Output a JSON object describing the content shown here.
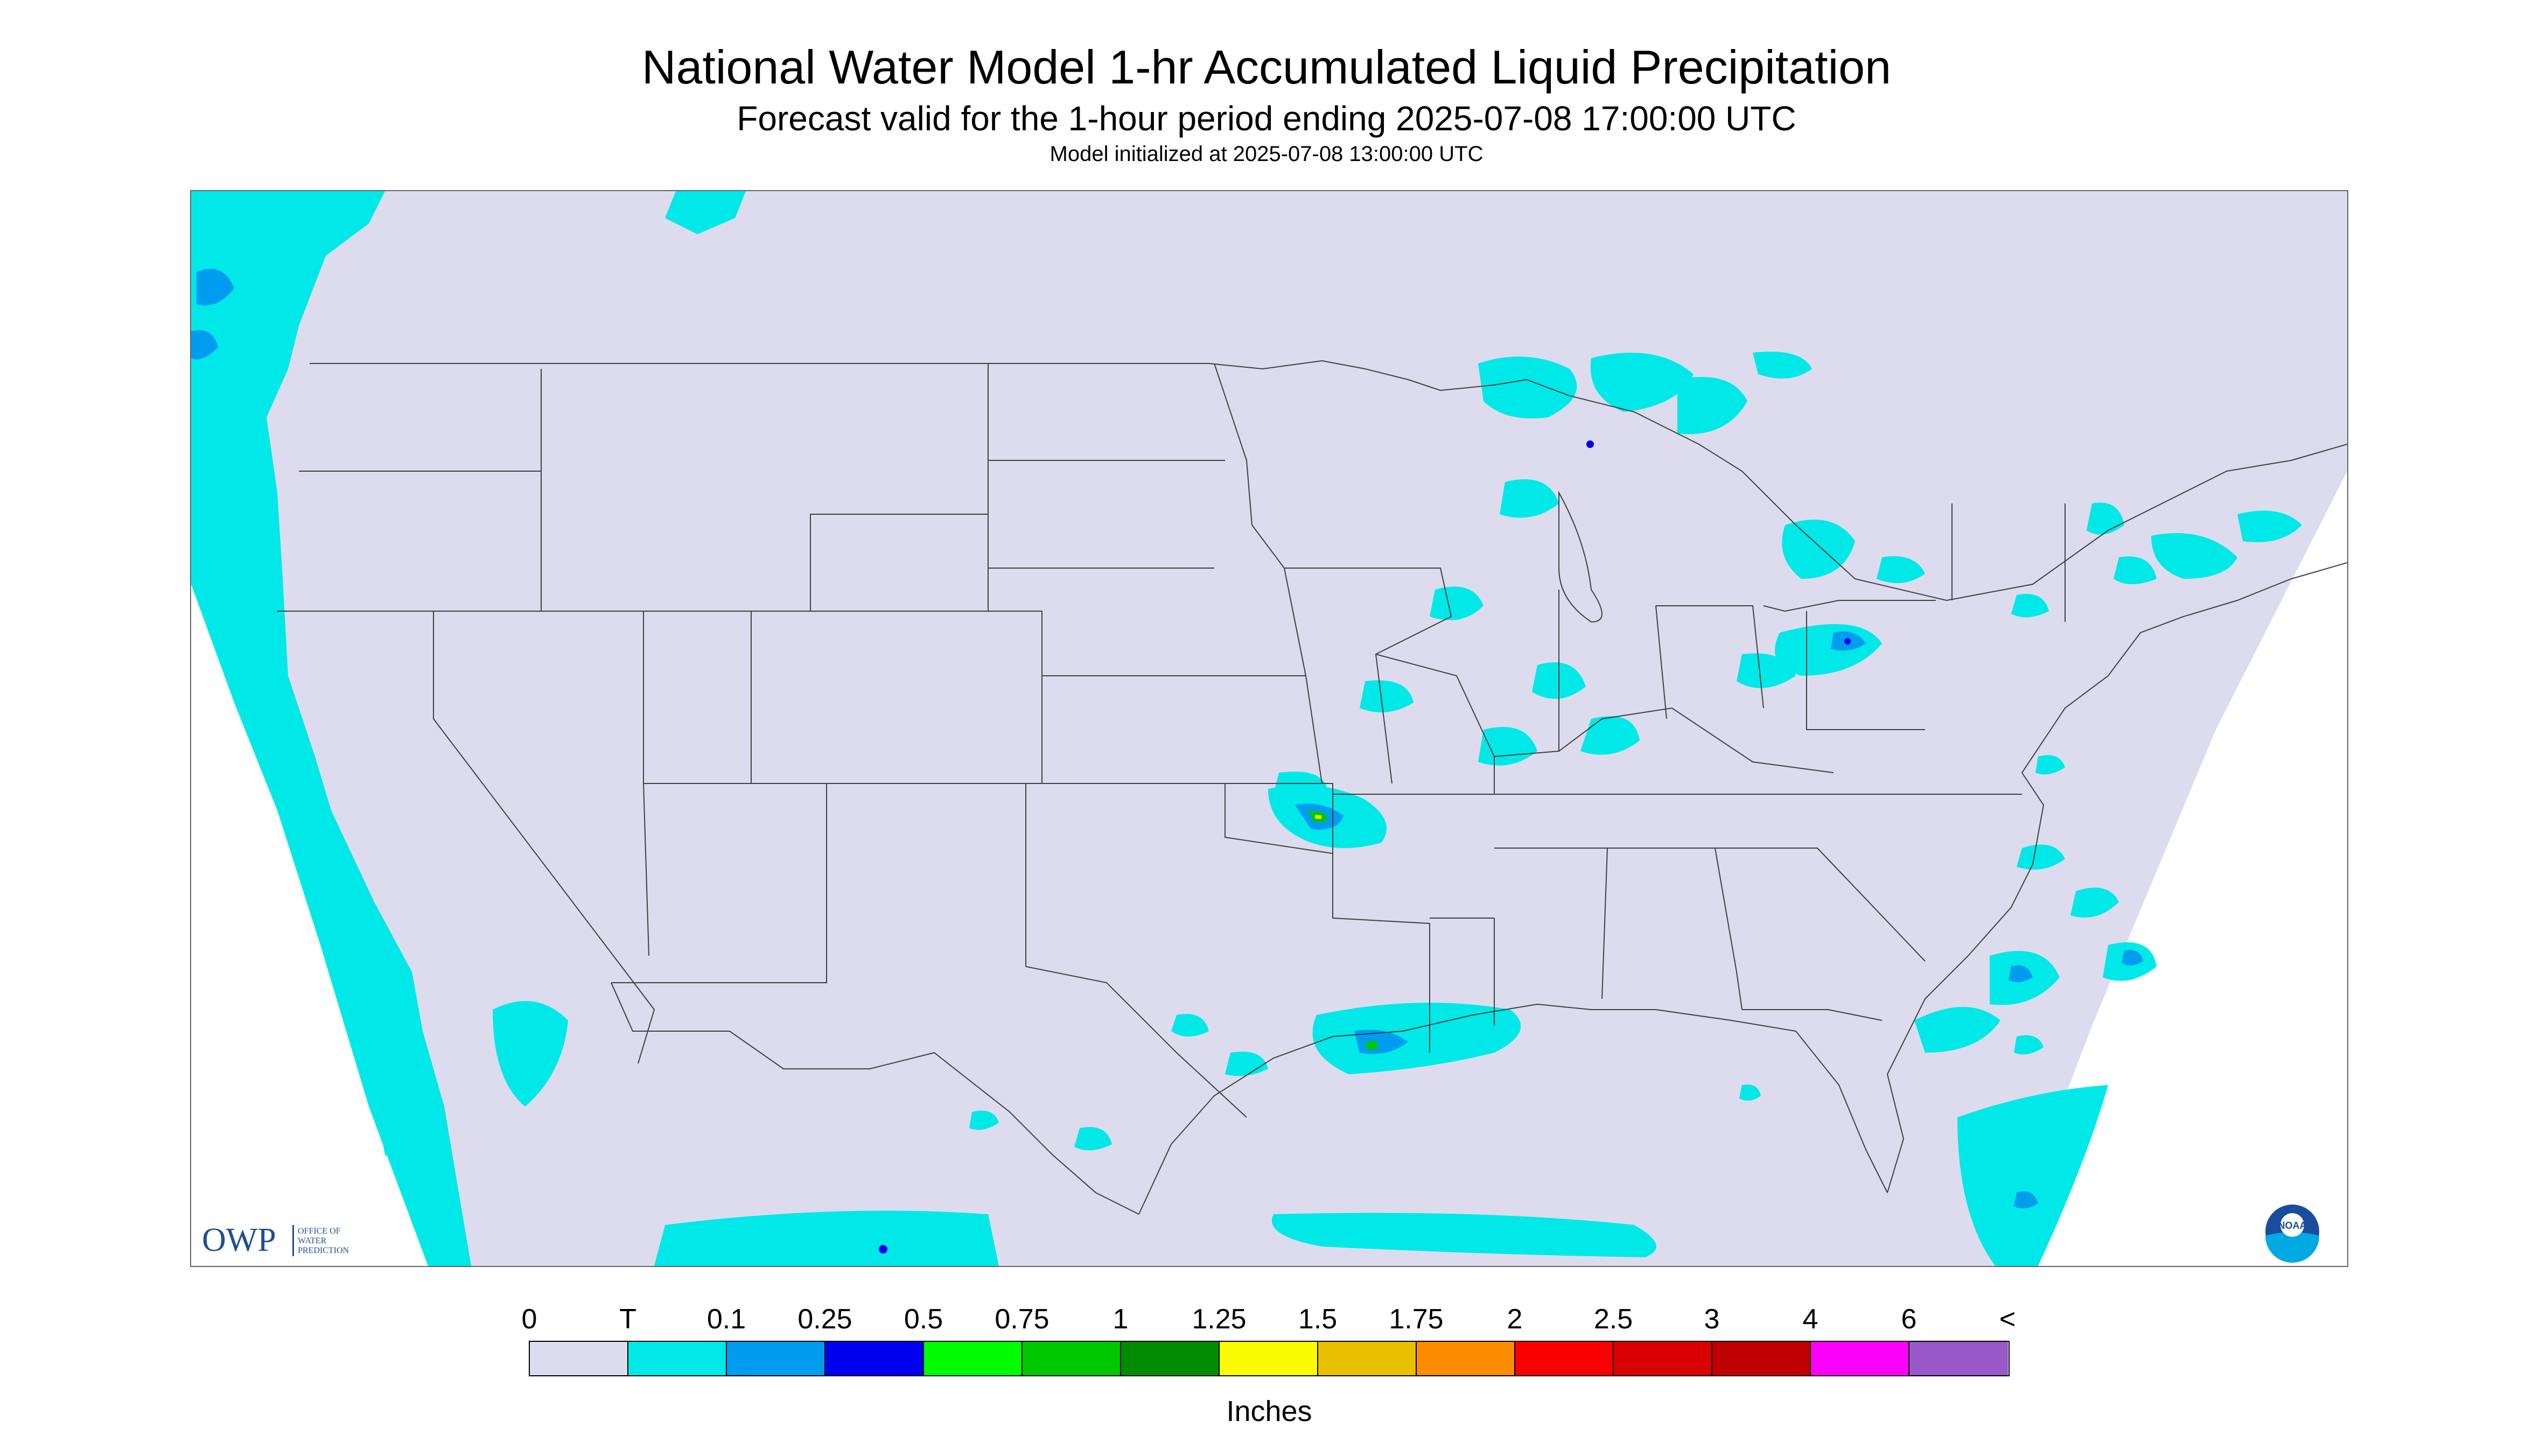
{
  "title": "National Water Model 1-hr Accumulated Liquid Precipitation",
  "subtitle": "Forecast valid for the 1-hour period ending 2025-07-08 17:00:00 UTC",
  "init_line": "Model initialized at 2025-07-08 13:00:00 UTC",
  "logos": {
    "owp_mark": "OWP",
    "owp_text": [
      "OFFICE OF",
      "WATER",
      "PREDICTION"
    ],
    "noaa_mark": "NOAA"
  },
  "legend": {
    "labels": [
      "0",
      "T",
      "0.1",
      "0.25",
      "0.5",
      "0.75",
      "1",
      "1.25",
      "1.5",
      "1.75",
      "2",
      "2.5",
      "3",
      "4",
      "6",
      "<"
    ],
    "colors": [
      "#dcdcee",
      "#00e8e8",
      "#009cf0",
      "#0000f0",
      "#00fc00",
      "#00c800",
      "#008c00",
      "#fcfc00",
      "#e8c000",
      "#fc8c00",
      "#fc0000",
      "#d80000",
      "#c00000",
      "#fc00fc",
      "#9858c8"
    ],
    "units": "Inches"
  },
  "colors": {
    "domain_fill": "#dcdcee",
    "trace": "#00e8e8",
    "light": "#009cf0",
    "moderate": "#0000f0",
    "heavy_green": "#00c800",
    "heavy_yellow": "#fcfc00",
    "boundary": "#404040"
  }
}
